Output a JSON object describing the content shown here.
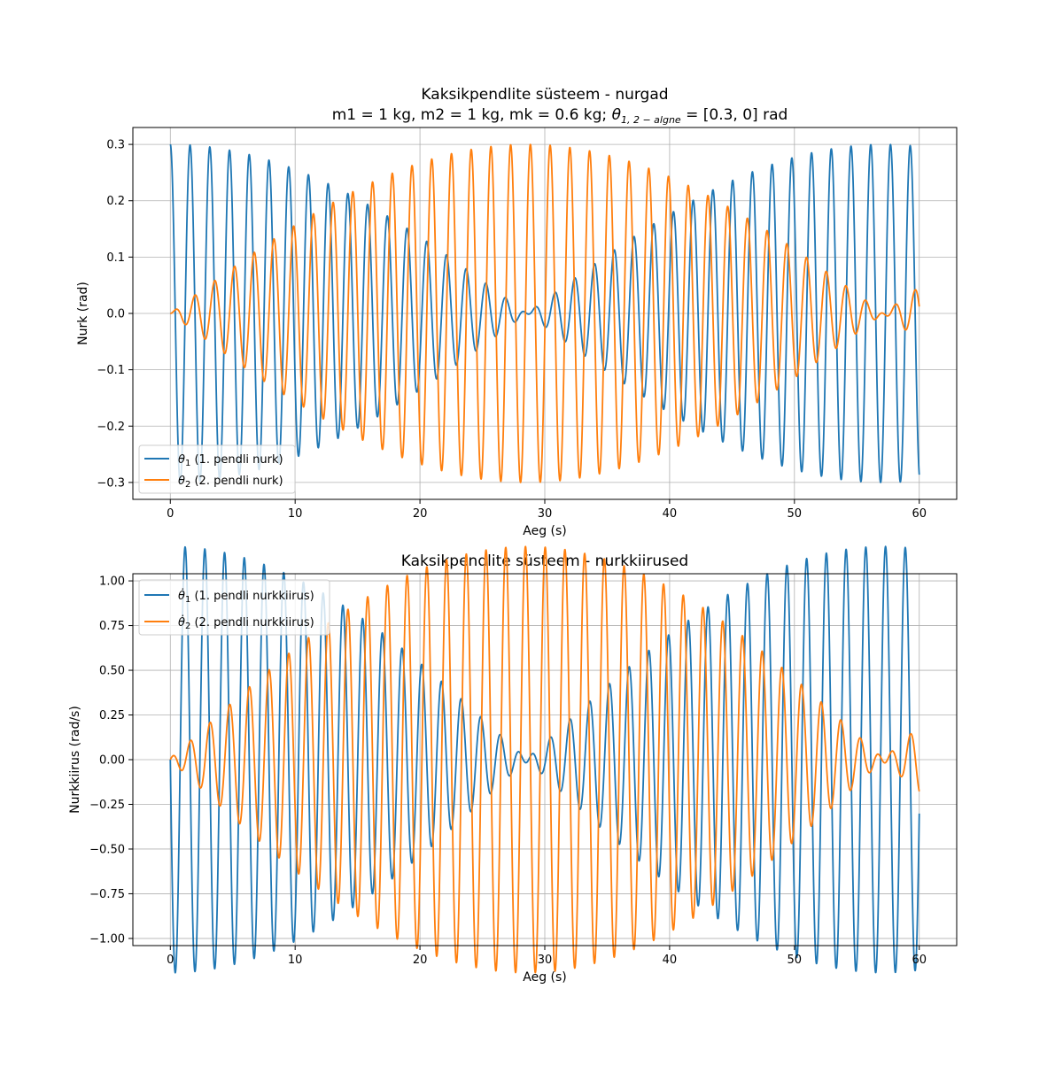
{
  "colors": {
    "theta1": "#1f77b4",
    "theta2": "#ff7f0e",
    "grid": "#b0b0b0",
    "axes": "#000000"
  },
  "chart_data": [
    {
      "type": "line",
      "title": "Kaksikpendlite süsteem - nurgad",
      "subtitle_prefix": "m1 = 1 kg, m2 = 1 kg, mk = 0.6 kg; ",
      "subtitle_symbol": "θ",
      "subtitle_subscript": "1, 2 − algne",
      "subtitle_suffix": " = [0.3, 0] rad",
      "xlabel": "Aeg (s)",
      "ylabel": "Nurk (rad)",
      "xlim": [
        -3,
        63
      ],
      "ylim": [
        -0.33,
        0.33
      ],
      "xticks": [
        0,
        10,
        20,
        30,
        40,
        50,
        60
      ],
      "xtick_labels": [
        "0",
        "10",
        "20",
        "30",
        "40",
        "50",
        "60"
      ],
      "yticks": [
        -0.3,
        -0.2,
        -0.1,
        0.0,
        0.1,
        0.2,
        0.3
      ],
      "ytick_labels": [
        "−0.3",
        "−0.2",
        "−0.1",
        "0.0",
        "0.1",
        "0.2",
        "0.3"
      ],
      "grid": true,
      "legend_position": "lower-left",
      "series": [
        {
          "name": "θ₁ (1. pendli nurk)",
          "legend_symbol": "θ",
          "legend_sub": "1",
          "legend_text": " (1. pendli nurk)",
          "model": {
            "type": "beat_cos",
            "amplitude": 0.3,
            "omega_a": 3.92,
            "omega_b": 4.03,
            "t_start": 0,
            "t_end": 60,
            "samples": 3000
          }
        },
        {
          "name": "θ₂ (2. pendli nurk)",
          "legend_symbol": "θ",
          "legend_sub": "2",
          "legend_text": " (2. pendli nurk)",
          "model": {
            "type": "beat_cos_diff",
            "amplitude": 0.3,
            "omega_a": 3.92,
            "omega_b": 4.03,
            "t_start": 0,
            "t_end": 60,
            "samples": 3000
          }
        }
      ]
    },
    {
      "type": "line",
      "title": "Kaksikpendlite süsteem - nurkkiirused",
      "xlabel": "Aeg (s)",
      "ylabel": "Nurkkiirus (rad/s)",
      "xlim": [
        -3,
        63
      ],
      "ylim": [
        -1.04,
        1.04
      ],
      "xticks": [
        0,
        10,
        20,
        30,
        40,
        50,
        60
      ],
      "xtick_labels": [
        "0",
        "10",
        "20",
        "30",
        "40",
        "50",
        "60"
      ],
      "yticks": [
        -1.0,
        -0.75,
        -0.5,
        -0.25,
        0.0,
        0.25,
        0.5,
        0.75,
        1.0
      ],
      "ytick_labels": [
        "−1.00",
        "−0.75",
        "−0.50",
        "−0.25",
        "0.00",
        "0.25",
        "0.50",
        "0.75",
        "1.00"
      ],
      "grid": true,
      "legend_position": "upper-left",
      "series": [
        {
          "name": "θ̇₁ (1. pendli nurkkiirus)",
          "legend_symbol": "θ̇",
          "legend_sub": "1",
          "legend_text": " (1. pendli nurkkiirus)",
          "model": {
            "type": "beat_vel",
            "amplitude": 0.3,
            "omega_a": 3.92,
            "omega_b": 4.03,
            "t_start": 0,
            "t_end": 60,
            "samples": 3000
          }
        },
        {
          "name": "θ̇₂ (2. pendli nurkkiirus)",
          "legend_symbol": "θ̇",
          "legend_sub": "2",
          "legend_text": " (2. pendli nurkkiirus)",
          "model": {
            "type": "beat_vel_diff",
            "amplitude": 0.3,
            "omega_a": 3.92,
            "omega_b": 4.03,
            "t_start": 0,
            "t_end": 60,
            "samples": 3000
          }
        }
      ]
    }
  ]
}
